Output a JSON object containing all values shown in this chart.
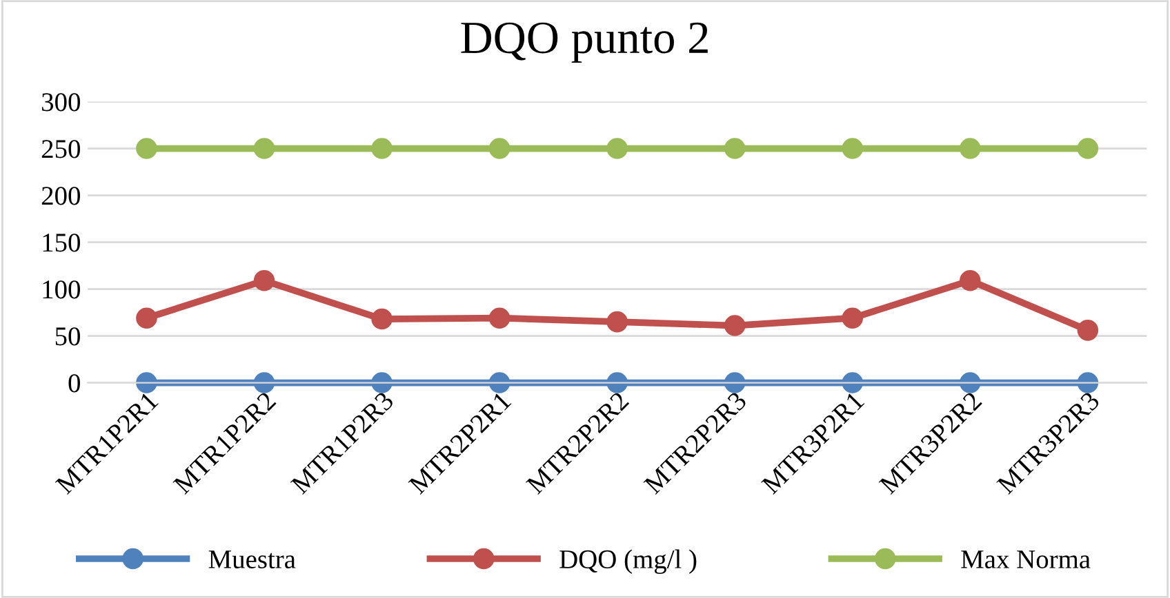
{
  "chart_data": {
    "type": "line",
    "title": "DQO punto 2",
    "categories": [
      "MTR1P2R1",
      "MTR1P2R2",
      "MTR1P2R3",
      "MTR2P2R1",
      "MTR2P2R2",
      "MTR2P2R3",
      "MTR3P2R1",
      "MTR3P2R2",
      "MTR3P2R3"
    ],
    "series": [
      {
        "name": "Muestra",
        "color": "#4f81bd",
        "values": [
          0,
          0,
          0,
          0,
          0,
          0,
          0,
          0,
          0
        ]
      },
      {
        "name": "DQO (mg/l )",
        "color": "#c0504d",
        "values": [
          69,
          109,
          68,
          69,
          65,
          61,
          69,
          109,
          56
        ]
      },
      {
        "name": "Max Norma",
        "color": "#9bbb59",
        "values": [
          250,
          250,
          250,
          250,
          250,
          250,
          250,
          250,
          250
        ]
      }
    ],
    "ylim": [
      0,
      300
    ],
    "yticks": [
      0,
      50,
      100,
      150,
      200,
      250,
      300
    ],
    "grid": "y",
    "legend": "bottom",
    "marker": "circle",
    "line_style": "solid"
  }
}
